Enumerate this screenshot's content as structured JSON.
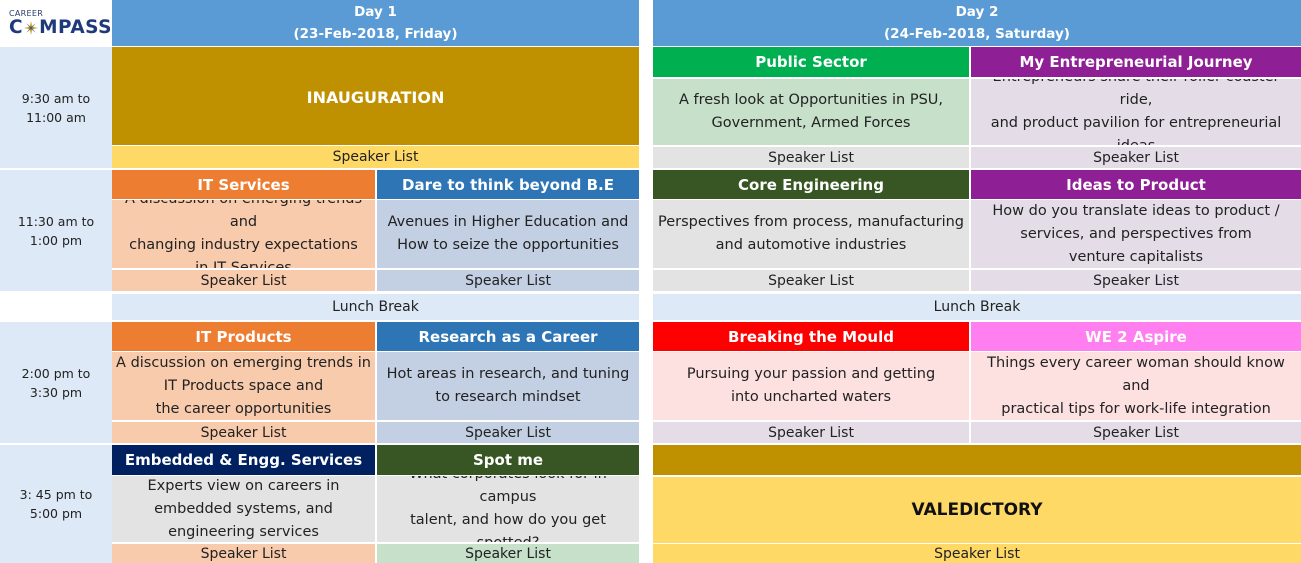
{
  "logo": {
    "line1": "CAREER",
    "word_start": "C",
    "word_end": "MPASS"
  },
  "days": {
    "day1": {
      "title": "Day 1",
      "date": "(23-Feb-2018, Friday)"
    },
    "day2": {
      "title": "Day 2",
      "date": "(24-Feb-2018, Saturday)"
    }
  },
  "times": {
    "slot1": [
      "9:30 am to",
      "11:00 am"
    ],
    "slot2": [
      "11:30 am to",
      "1:00 pm"
    ],
    "slot3": [
      "2:00 pm to",
      "3:30 pm"
    ],
    "slot4": [
      "3: 45 pm to",
      "5:00 pm"
    ]
  },
  "speaker_label": "Speaker List",
  "lunch_label": "Lunch Break",
  "day1": {
    "inauguration": "INAUGURATION",
    "it_services": {
      "title": "IT Services",
      "desc": [
        "A discussion on emerging trends and",
        "changing industry expectations",
        "in IT Services"
      ]
    },
    "beyond_be": {
      "title": "Dare to think beyond B.E",
      "desc": [
        "Avenues in Higher Education and",
        "How to seize the opportunities"
      ]
    },
    "it_products": {
      "title": "IT Products",
      "desc": [
        "A discussion on emerging trends in",
        "IT Products space and",
        "the career opportunities"
      ]
    },
    "research": {
      "title": "Research as a Career",
      "desc": [
        "Hot areas in research, and tuning",
        "to research mindset"
      ]
    },
    "embedded": {
      "title": "Embedded & Engg. Services",
      "desc": [
        "Experts view on careers in",
        "embedded systems, and",
        "engineering services"
      ]
    },
    "spot_me": {
      "title": "Spot me",
      "desc": [
        "What corporates look for in campus",
        "talent, and how do you get spotted?"
      ]
    }
  },
  "day2": {
    "public_sector": {
      "title": "Public Sector",
      "desc": [
        "A fresh look at Opportunities in PSU,",
        "Government, Armed Forces"
      ]
    },
    "entrepreneurial": {
      "title": "My Entrepreneurial Journey",
      "desc": [
        "Entrepreneurs share their roller coaster ride,",
        "and product pavilion for entrepreneurial ideas"
      ]
    },
    "core_eng": {
      "title": "Core Engineering",
      "desc": [
        "Perspectives from process, manufacturing",
        "and automotive industries"
      ]
    },
    "ideas_product": {
      "title": "Ideas to Product",
      "desc": [
        "How do you translate ideas to product /",
        "services, and perspectives from",
        "venture capitalists"
      ]
    },
    "breaking_mould": {
      "title": "Breaking the Mould",
      "desc": [
        "Pursuing your passion and getting",
        "into uncharted waters"
      ]
    },
    "we2aspire": {
      "title": "WE 2 Aspire",
      "desc": [
        "Things every career woman should know and",
        "practical tips for work-life integration"
      ]
    },
    "valedictory": "VALEDICTORY"
  },
  "colors": {
    "day_header": "#5b9bd5",
    "time_bg": "#dde9f6",
    "gold": "#bf9000",
    "yellow": "#ffd966",
    "orange": "#ed7d31",
    "orange_light": "#f8cbad",
    "blue": "#2e75b6",
    "blue_light": "#c3cfe2",
    "green": "#00b050",
    "green_light": "#c6e0c9",
    "purple": "#8e1f94",
    "purple_light": "#e4dde8",
    "dark_green": "#375623",
    "navy": "#002060",
    "red": "#ff0000",
    "red_light": "#fde0e0",
    "pink": "#ff7ff0",
    "gray": "#e3e3e3"
  }
}
